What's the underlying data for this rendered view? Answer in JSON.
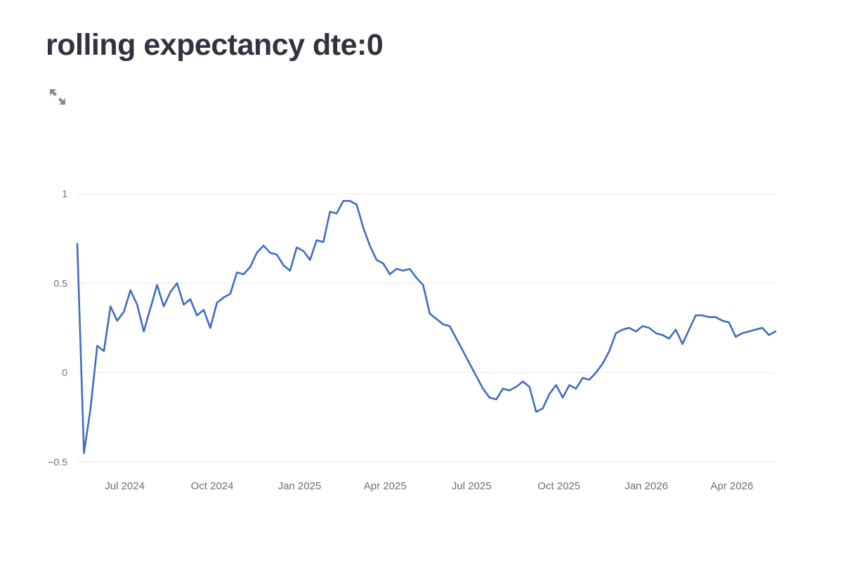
{
  "page": {
    "title": "rolling expectancy dte:0",
    "expand_icon": "fullscreen-expand-icon"
  },
  "colors": {
    "line": "#3f6dbf",
    "grid": "#e6e9ef",
    "tick_text": "#6b6f7b",
    "title": "#31333f"
  },
  "chart_data": {
    "type": "line",
    "title": "",
    "xlabel": "",
    "ylabel": "",
    "ylim": [
      -0.5,
      1.0
    ],
    "yticks": [
      {
        "value": 1,
        "label": "1"
      },
      {
        "value": 0.5,
        "label": "0.5"
      },
      {
        "value": 0,
        "label": "0"
      },
      {
        "value": -0.5,
        "label": "−0.5"
      }
    ],
    "xlim": [
      "2024-05-12",
      "2026-05-17"
    ],
    "xticks": [
      {
        "date": "2024-07-01",
        "label": "Jul 2024"
      },
      {
        "date": "2024-10-01",
        "label": "Oct 2024"
      },
      {
        "date": "2025-01-01",
        "label": "Jan 2025"
      },
      {
        "date": "2025-04-01",
        "label": "Apr 2025"
      },
      {
        "date": "2025-07-01",
        "label": "Jul 2025"
      },
      {
        "date": "2025-10-01",
        "label": "Oct 2025"
      },
      {
        "date": "2026-01-01",
        "label": "Jan 2026"
      },
      {
        "date": "2026-04-01",
        "label": "Apr 2026"
      }
    ],
    "grid": true,
    "series": [
      {
        "values": [
          [
            "2024-05-12",
            0.72
          ],
          [
            "2024-05-19",
            -0.45
          ],
          [
            "2024-05-26",
            -0.2
          ],
          [
            "2024-06-02",
            0.15
          ],
          [
            "2024-06-09",
            0.12
          ],
          [
            "2024-06-16",
            0.37
          ],
          [
            "2024-06-23",
            0.29
          ],
          [
            "2024-06-30",
            0.34
          ],
          [
            "2024-07-07",
            0.46
          ],
          [
            "2024-07-14",
            0.38
          ],
          [
            "2024-07-21",
            0.23
          ],
          [
            "2024-07-28",
            0.36
          ],
          [
            "2024-08-04",
            0.49
          ],
          [
            "2024-08-11",
            0.37
          ],
          [
            "2024-08-18",
            0.45
          ],
          [
            "2024-08-25",
            0.5
          ],
          [
            "2024-09-01",
            0.38
          ],
          [
            "2024-09-08",
            0.41
          ],
          [
            "2024-09-15",
            0.32
          ],
          [
            "2024-09-22",
            0.35
          ],
          [
            "2024-09-29",
            0.25
          ],
          [
            "2024-10-06",
            0.39
          ],
          [
            "2024-10-13",
            0.42
          ],
          [
            "2024-10-20",
            0.44
          ],
          [
            "2024-10-27",
            0.56
          ],
          [
            "2024-11-03",
            0.55
          ],
          [
            "2024-11-10",
            0.59
          ],
          [
            "2024-11-17",
            0.67
          ],
          [
            "2024-11-24",
            0.71
          ],
          [
            "2024-12-01",
            0.67
          ],
          [
            "2024-12-08",
            0.66
          ],
          [
            "2024-12-15",
            0.6
          ],
          [
            "2024-12-22",
            0.57
          ],
          [
            "2024-12-29",
            0.7
          ],
          [
            "2025-01-05",
            0.68
          ],
          [
            "2025-01-12",
            0.63
          ],
          [
            "2025-01-19",
            0.74
          ],
          [
            "2025-01-26",
            0.73
          ],
          [
            "2025-02-02",
            0.9
          ],
          [
            "2025-02-09",
            0.89
          ],
          [
            "2025-02-16",
            0.96
          ],
          [
            "2025-02-23",
            0.96
          ],
          [
            "2025-03-02",
            0.94
          ],
          [
            "2025-03-09",
            0.81
          ],
          [
            "2025-03-16",
            0.71
          ],
          [
            "2025-03-23",
            0.63
          ],
          [
            "2025-03-30",
            0.61
          ],
          [
            "2025-04-06",
            0.55
          ],
          [
            "2025-04-13",
            0.58
          ],
          [
            "2025-04-20",
            0.57
          ],
          [
            "2025-04-27",
            0.58
          ],
          [
            "2025-05-04",
            0.53
          ],
          [
            "2025-05-11",
            0.49
          ],
          [
            "2025-05-18",
            0.33
          ],
          [
            "2025-05-25",
            0.3
          ],
          [
            "2025-06-01",
            0.27
          ],
          [
            "2025-06-08",
            0.26
          ],
          [
            "2025-06-15",
            0.19
          ],
          [
            "2025-06-22",
            0.12
          ],
          [
            "2025-06-29",
            0.05
          ],
          [
            "2025-07-06",
            -0.02
          ],
          [
            "2025-07-13",
            -0.09
          ],
          [
            "2025-07-20",
            -0.14
          ],
          [
            "2025-07-27",
            -0.15
          ],
          [
            "2025-08-03",
            -0.09
          ],
          [
            "2025-08-10",
            -0.1
          ],
          [
            "2025-08-17",
            -0.08
          ],
          [
            "2025-08-24",
            -0.05
          ],
          [
            "2025-08-31",
            -0.08
          ],
          [
            "2025-09-07",
            -0.22
          ],
          [
            "2025-09-14",
            -0.2
          ],
          [
            "2025-09-21",
            -0.12
          ],
          [
            "2025-09-28",
            -0.07
          ],
          [
            "2025-10-05",
            -0.14
          ],
          [
            "2025-10-12",
            -0.07
          ],
          [
            "2025-10-19",
            -0.09
          ],
          [
            "2025-10-26",
            -0.03
          ],
          [
            "2025-11-02",
            -0.04
          ],
          [
            "2025-11-09",
            0.0
          ],
          [
            "2025-11-16",
            0.05
          ],
          [
            "2025-11-23",
            0.12
          ],
          [
            "2025-11-30",
            0.22
          ],
          [
            "2025-12-07",
            0.24
          ],
          [
            "2025-12-14",
            0.25
          ],
          [
            "2025-12-21",
            0.23
          ],
          [
            "2025-12-28",
            0.26
          ],
          [
            "2026-01-04",
            0.25
          ],
          [
            "2026-01-11",
            0.22
          ],
          [
            "2026-01-18",
            0.21
          ],
          [
            "2026-01-25",
            0.19
          ],
          [
            "2026-02-01",
            0.24
          ],
          [
            "2026-02-08",
            0.16
          ],
          [
            "2026-02-15",
            0.24
          ],
          [
            "2026-02-22",
            0.32
          ],
          [
            "2026-03-01",
            0.32
          ],
          [
            "2026-03-08",
            0.31
          ],
          [
            "2026-03-15",
            0.31
          ],
          [
            "2026-03-22",
            0.29
          ],
          [
            "2026-03-29",
            0.28
          ],
          [
            "2026-04-05",
            0.2
          ],
          [
            "2026-04-12",
            0.22
          ],
          [
            "2026-04-19",
            0.23
          ],
          [
            "2026-04-26",
            0.24
          ],
          [
            "2026-05-03",
            0.25
          ],
          [
            "2026-05-10",
            0.21
          ],
          [
            "2026-05-17",
            0.23
          ]
        ]
      }
    ]
  }
}
